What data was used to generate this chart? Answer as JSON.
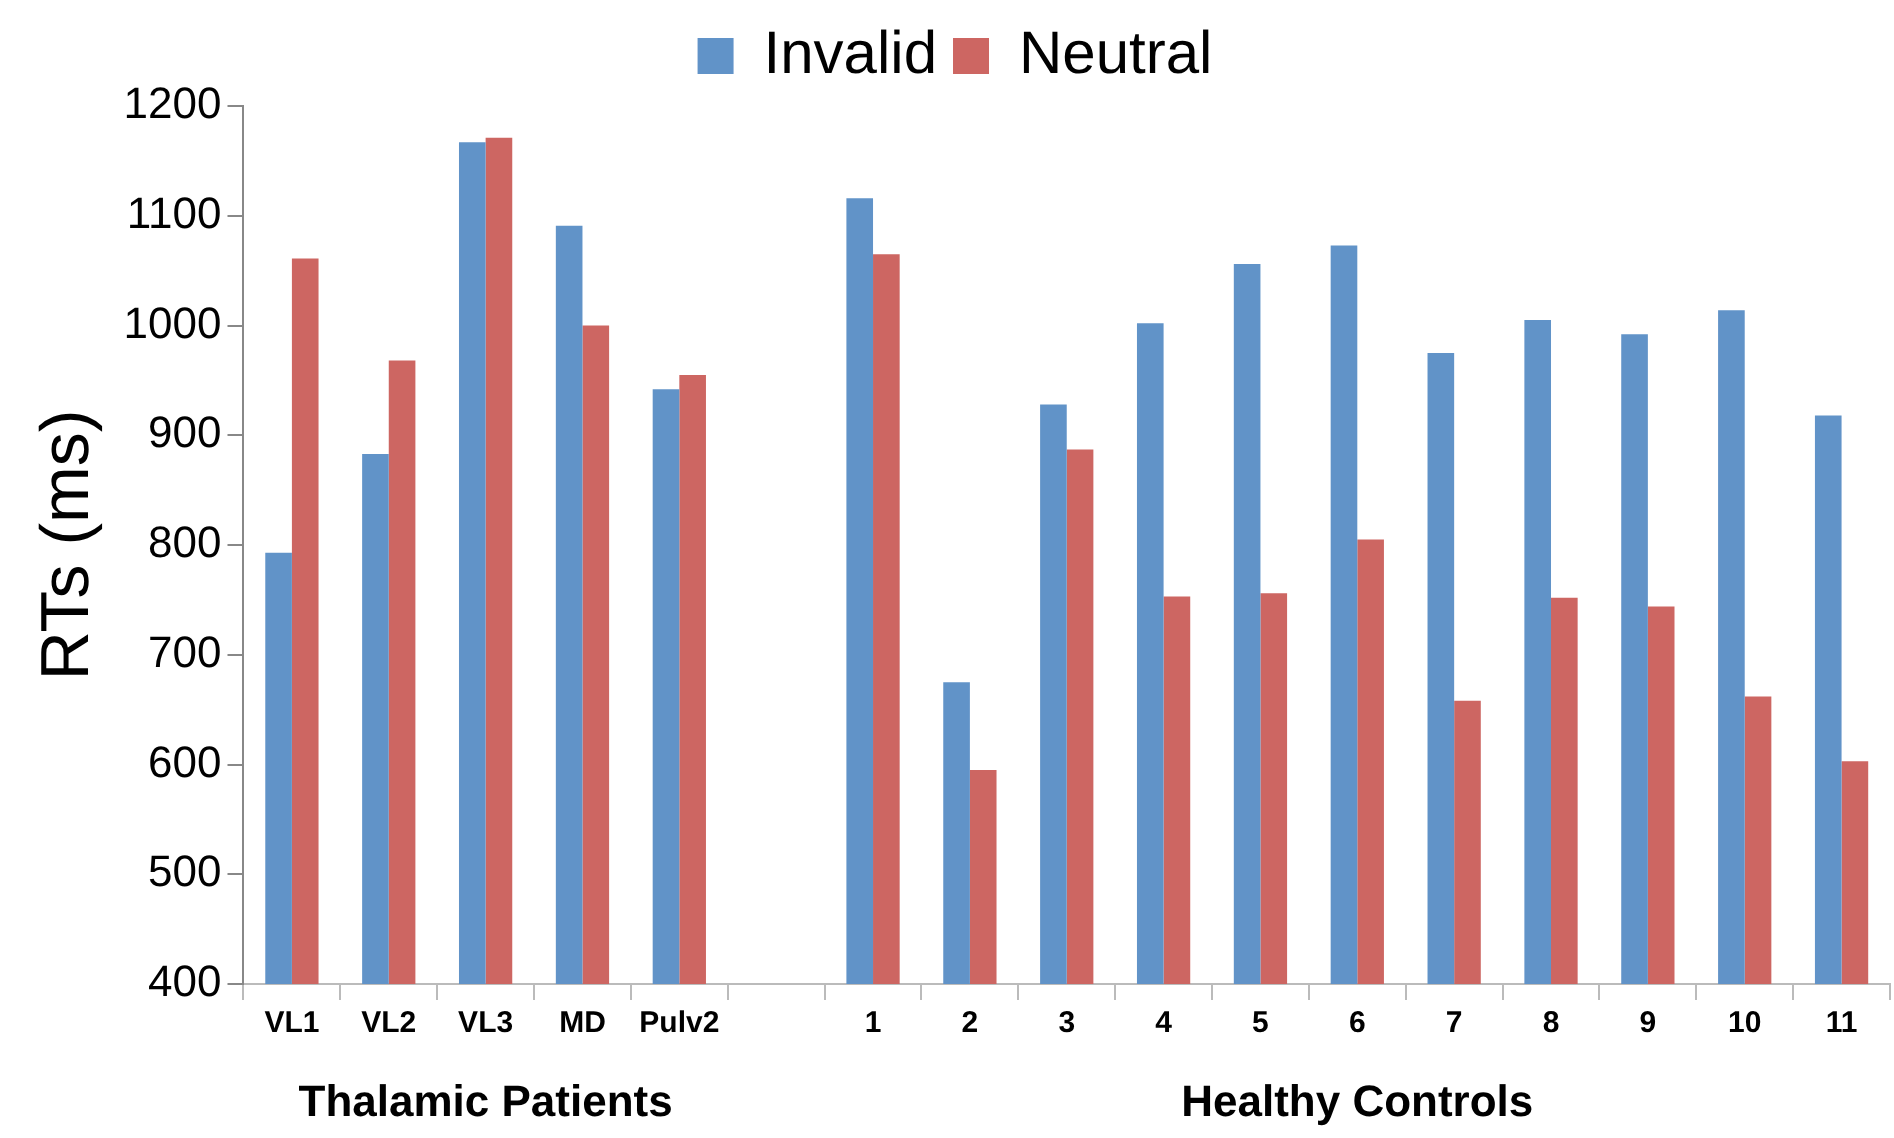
{
  "chart_data": {
    "type": "bar",
    "ylabel": "RTs (ms)",
    "categories": [
      "VL1",
      "VL2",
      "VL3",
      "MD",
      "Pulv2",
      null,
      "1",
      "2",
      "3",
      "4",
      "5",
      "6",
      "7",
      "8",
      "9",
      "10",
      "11"
    ],
    "series": [
      {
        "name": "Invalid",
        "color": "#6193c8",
        "values": [
          793,
          883,
          1167,
          1091,
          942,
          null,
          1116,
          675,
          928,
          1002,
          1056,
          1073,
          975,
          1005,
          992,
          1014,
          918
        ]
      },
      {
        "name": "Neutral",
        "color": "#cd6662",
        "values": [
          1061,
          968,
          1171,
          1000,
          955,
          null,
          1065,
          595,
          887,
          753,
          756,
          805,
          658,
          752,
          744,
          662,
          603
        ]
      }
    ],
    "ylim": [
      400,
      1200
    ],
    "yticks": [
      400,
      500,
      600,
      700,
      800,
      900,
      1000,
      1100,
      1200
    ],
    "grid": false,
    "legend": "top",
    "annotations": [
      "Thalamic Patients",
      "Healthy Controls"
    ]
  }
}
